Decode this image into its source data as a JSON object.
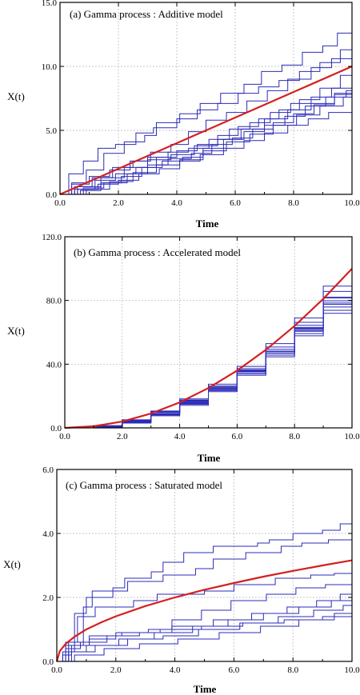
{
  "chart_data": [
    {
      "type": "line",
      "title": "(a) Gamma process : Additive model",
      "xlabel": "Time",
      "ylabel": "X(t)",
      "xlim": [
        0,
        10
      ],
      "ylim": [
        0,
        15
      ],
      "xticks": [
        "0.0",
        "2.0",
        "4.0",
        "6.0",
        "8.0",
        "10.0"
      ],
      "yticks": [
        "0.0",
        "5.0",
        "10.0",
        "15.0"
      ],
      "grid": true,
      "colors": {
        "paths": "#2b2bb8",
        "mean": "#d42020"
      },
      "mean": {
        "x": [
          0,
          10
        ],
        "y": [
          0,
          10
        ]
      },
      "paths": [
        {
          "x": [
            0,
            0.4,
            0.9,
            1.5,
            2.2,
            2.9,
            3.3,
            4.1,
            4.8,
            5.5,
            6.3,
            6.9,
            7.6,
            8.3,
            9.0,
            9.5,
            10
          ],
          "y": [
            0,
            0.9,
            1.9,
            3.2,
            4.1,
            4.6,
            5.6,
            6.3,
            7.1,
            7.9,
            8.6,
            9.6,
            10.1,
            11.1,
            11.6,
            12.6,
            12.6
          ]
        },
        {
          "x": [
            0,
            0.3,
            0.8,
            1.3,
            1.9,
            2.6,
            3.2,
            4.0,
            4.7,
            5.4,
            6.1,
            6.8,
            7.5,
            8.2,
            8.9,
            9.6,
            10
          ],
          "y": [
            0,
            1.6,
            2.6,
            3.6,
            3.9,
            4.8,
            5.2,
            5.9,
            6.6,
            7.1,
            7.9,
            8.4,
            8.9,
            9.6,
            10.3,
            11.3,
            11.6
          ]
        },
        {
          "x": [
            0,
            0.5,
            1.1,
            1.8,
            2.5,
            3.1,
            3.8,
            4.4,
            5.0,
            5.7,
            6.4,
            7.1,
            7.8,
            8.6,
            9.3,
            10
          ],
          "y": [
            0,
            0.6,
            1.3,
            2.1,
            2.6,
            3.3,
            3.9,
            4.9,
            5.8,
            6.4,
            7.3,
            8.1,
            9.0,
            9.9,
            10.6,
            11.0
          ]
        },
        {
          "x": [
            0,
            0.6,
            1.2,
            1.9,
            2.6,
            3.3,
            4.0,
            4.7,
            5.4,
            6.1,
            6.8,
            7.5,
            8.2,
            8.9,
            9.6,
            10
          ],
          "y": [
            0,
            0.4,
            1.1,
            1.6,
            2.1,
            2.9,
            3.4,
            3.9,
            4.6,
            5.3,
            5.9,
            6.6,
            7.4,
            8.3,
            9.3,
            10.3
          ]
        },
        {
          "x": [
            0,
            0.4,
            1.0,
            1.7,
            2.4,
            3.0,
            3.7,
            4.4,
            5.1,
            5.8,
            6.5,
            7.2,
            7.9,
            8.6,
            9.3,
            10
          ],
          "y": [
            0,
            0.8,
            1.4,
            1.9,
            2.6,
            2.9,
            3.3,
            3.6,
            4.3,
            5.1,
            5.6,
            6.4,
            7.1,
            7.6,
            8.3,
            8.6
          ]
        },
        {
          "x": [
            0,
            0.7,
            1.4,
            2.1,
            2.8,
            3.5,
            4.2,
            4.9,
            5.6,
            6.3,
            7.0,
            7.7,
            8.4,
            9.1,
            9.8,
            10
          ],
          "y": [
            0,
            0.3,
            0.9,
            1.4,
            2.1,
            2.6,
            2.9,
            3.6,
            4.3,
            4.9,
            5.4,
            6.1,
            6.9,
            7.6,
            8.1,
            8.3
          ]
        },
        {
          "x": [
            0,
            0.8,
            1.5,
            2.3,
            3.0,
            3.7,
            4.5,
            5.2,
            5.9,
            6.6,
            7.3,
            8.0,
            8.7,
            9.4,
            10
          ],
          "y": [
            0,
            0.5,
            0.9,
            1.6,
            2.3,
            2.8,
            3.2,
            3.9,
            4.4,
            5.1,
            5.6,
            6.3,
            7.0,
            7.8,
            8.8
          ]
        },
        {
          "x": [
            0,
            0.5,
            1.3,
            2.0,
            2.7,
            3.4,
            4.1,
            4.8,
            5.6,
            6.3,
            7.0,
            7.8,
            8.5,
            9.2,
            10
          ],
          "y": [
            0,
            0.4,
            0.8,
            1.1,
            1.6,
            2.0,
            2.6,
            3.1,
            3.6,
            4.2,
            4.8,
            5.4,
            5.9,
            6.4,
            6.7
          ]
        },
        {
          "x": [
            0,
            0.6,
            1.4,
            2.2,
            3.0,
            3.8,
            4.6,
            5.4,
            6.2,
            7.0,
            7.8,
            8.6,
            9.4,
            10
          ],
          "y": [
            0,
            0.6,
            1.3,
            2.1,
            2.7,
            3.1,
            3.8,
            4.3,
            5.1,
            5.9,
            6.6,
            7.1,
            7.9,
            8.4
          ]
        },
        {
          "x": [
            0,
            0.9,
            1.7,
            2.5,
            3.3,
            4.1,
            4.9,
            5.7,
            6.5,
            7.3,
            8.1,
            8.9,
            9.7,
            10
          ],
          "y": [
            0,
            0.4,
            1.0,
            1.7,
            2.3,
            2.7,
            3.4,
            4.1,
            4.7,
            5.4,
            6.2,
            6.9,
            7.6,
            7.9
          ]
        }
      ]
    },
    {
      "type": "line",
      "title": "(b) Gamma process : Accelerated  model",
      "xlabel": "Time",
      "ylabel": "X(t)",
      "xlim": [
        0,
        10
      ],
      "ylim": [
        0,
        120
      ],
      "xticks": [
        "0.0",
        "2.0",
        "4.0",
        "6.0",
        "8.0",
        "10.0"
      ],
      "yticks": [
        "0.0",
        "40.0",
        "80.0",
        "120.0"
      ],
      "grid": true,
      "colors": {
        "paths": "#2b2bb8",
        "mean": "#d42020"
      },
      "mean": {
        "x": [
          0,
          1,
          2,
          3,
          4,
          5,
          6,
          7,
          8,
          9,
          10
        ],
        "y": [
          0,
          1,
          4,
          9,
          16,
          25,
          36,
          49,
          64,
          81,
          100
        ]
      },
      "paths": [
        {
          "x": [
            0,
            1,
            2,
            3,
            4,
            5,
            6,
            7,
            8,
            9,
            10
          ],
          "y": [
            0,
            1.4,
            5.1,
            10.6,
            18.2,
            27.4,
            38.6,
            52.9,
            69.0,
            89.0,
            112.0
          ]
        },
        {
          "x": [
            0,
            1,
            2,
            3,
            4,
            5,
            6,
            7,
            8,
            9,
            10
          ],
          "y": [
            0,
            1.0,
            4.5,
            9.8,
            17.1,
            26.3,
            37.2,
            50.8,
            66.3,
            85.7,
            108.0
          ]
        },
        {
          "x": [
            0,
            1,
            2,
            3,
            4,
            5,
            6,
            7,
            8,
            9,
            10
          ],
          "y": [
            0,
            0.7,
            3.6,
            8.4,
            15.6,
            24.2,
            35.3,
            48.2,
            63.1,
            81.5,
            103.0
          ]
        },
        {
          "x": [
            0,
            1,
            2,
            3,
            4,
            5,
            6,
            7,
            8,
            9,
            10
          ],
          "y": [
            0,
            1.2,
            4.2,
            9.5,
            16.4,
            25.5,
            36.0,
            49.3,
            64.4,
            82.0,
            101.0
          ]
        },
        {
          "x": [
            0,
            1,
            2,
            3,
            4,
            5,
            6,
            7,
            8,
            9,
            10
          ],
          "y": [
            0,
            0.9,
            3.9,
            8.8,
            15.9,
            24.8,
            35.6,
            47.9,
            62.5,
            79.8,
            99.0
          ]
        },
        {
          "x": [
            0,
            1,
            2,
            3,
            4,
            5,
            6,
            7,
            8,
            9,
            10
          ],
          "y": [
            0,
            0.6,
            3.3,
            8.1,
            14.9,
            23.4,
            34.1,
            46.8,
            61.2,
            77.6,
            96.0
          ]
        },
        {
          "x": [
            0,
            1,
            2,
            3,
            4,
            5,
            6,
            7,
            8,
            9,
            10
          ],
          "y": [
            0,
            1.1,
            4.6,
            9.9,
            16.7,
            25.0,
            35.1,
            47.0,
            60.6,
            75.9,
            93.0
          ]
        },
        {
          "x": [
            0,
            1,
            2,
            3,
            4,
            5,
            6,
            7,
            8,
            9,
            10
          ],
          "y": [
            0,
            0.8,
            3.7,
            8.6,
            15.3,
            23.8,
            33.9,
            45.7,
            59.2,
            73.8,
            90.0
          ]
        },
        {
          "x": [
            0,
            1,
            2,
            3,
            4,
            5,
            6,
            7,
            8,
            9,
            10
          ],
          "y": [
            0,
            0.5,
            3.0,
            7.6,
            14.2,
            22.7,
            33.0,
            44.6,
            57.8,
            71.9,
            87.0
          ]
        },
        {
          "x": [
            0,
            1,
            2,
            3,
            4,
            5,
            6,
            7,
            8,
            9,
            10
          ],
          "y": [
            0,
            1.3,
            4.9,
            10.2,
            17.5,
            26.1,
            36.4,
            48.1,
            61.9,
            78.4,
            97.0
          ]
        }
      ]
    },
    {
      "type": "line",
      "title": "(c) Gamma process : Saturated model",
      "xlabel": "Time",
      "ylabel": "X(t)",
      "xlim": [
        0,
        10
      ],
      "ylim": [
        0,
        6
      ],
      "xticks": [
        "0.0",
        "2.0",
        "4.0",
        "6.0",
        "8.0",
        "10.0"
      ],
      "yticks": [
        "0.0",
        "2.0",
        "4.0",
        "6.0"
      ],
      "grid": true,
      "colors": {
        "paths": "#2b2bb8",
        "mean": "#d42020"
      },
      "mean": {
        "x": [
          0,
          0.1,
          0.3,
          0.6,
          1,
          1.5,
          2,
          3,
          4,
          5,
          6,
          7,
          8,
          9,
          10
        ],
        "y": [
          0,
          0.32,
          0.55,
          0.77,
          1.0,
          1.22,
          1.41,
          1.73,
          2.0,
          2.24,
          2.45,
          2.65,
          2.83,
          3.0,
          3.16
        ]
      },
      "paths": [
        {
          "x": [
            0,
            0.2,
            0.6,
            1.0,
            1.9,
            2.3,
            3.2,
            3.6,
            4.3,
            5.3,
            6.8,
            7.2,
            8.0,
            9.0,
            9.6,
            10
          ],
          "y": [
            0,
            0.3,
            1.5,
            2.0,
            2.3,
            2.6,
            2.8,
            3.1,
            3.4,
            3.6,
            3.7,
            3.8,
            4.0,
            4.1,
            4.3,
            4.4
          ]
        },
        {
          "x": [
            0,
            0.3,
            0.9,
            1.2,
            2.4,
            3.6,
            4.7,
            5.3,
            6.4,
            7.6,
            8.3,
            9.2,
            10
          ],
          "y": [
            0,
            0.5,
            1.7,
            2.2,
            2.5,
            2.7,
            2.9,
            3.2,
            3.4,
            3.6,
            3.7,
            3.8,
            3.9
          ]
        },
        {
          "x": [
            0,
            0.4,
            0.7,
            1.3,
            2.6,
            3.4,
            5.0,
            6.0,
            7.4,
            8.6,
            9.4,
            10
          ],
          "y": [
            0,
            0.6,
            1.4,
            1.7,
            1.9,
            2.1,
            2.2,
            2.4,
            2.6,
            2.7,
            2.75,
            2.8
          ]
        },
        {
          "x": [
            0,
            0.2,
            0.5,
            1.1,
            2.0,
            3.1,
            3.9,
            4.9,
            5.9,
            7.1,
            8.1,
            9.1,
            10
          ],
          "y": [
            0,
            0.2,
            0.5,
            0.7,
            0.9,
            1.0,
            1.3,
            1.6,
            1.9,
            2.1,
            2.3,
            2.4,
            2.5
          ]
        },
        {
          "x": [
            0,
            0.3,
            0.8,
            1.7,
            2.8,
            3.9,
            5.3,
            6.6,
            7.8,
            8.8,
            9.6,
            10
          ],
          "y": [
            0,
            0.4,
            0.6,
            0.8,
            0.9,
            1.1,
            1.3,
            1.5,
            1.7,
            1.9,
            2.1,
            2.3
          ]
        },
        {
          "x": [
            0,
            0.4,
            1.0,
            2.1,
            3.3,
            4.6,
            5.8,
            7.0,
            8.2,
            9.3,
            10
          ],
          "y": [
            0,
            0.3,
            0.5,
            0.7,
            0.9,
            1.1,
            1.3,
            1.5,
            1.7,
            1.9,
            2.0
          ]
        },
        {
          "x": [
            0,
            0.5,
            1.3,
            2.4,
            3.6,
            4.8,
            6.2,
            7.5,
            8.7,
            9.7,
            10
          ],
          "y": [
            0,
            0.3,
            0.5,
            0.7,
            0.8,
            1.0,
            1.2,
            1.4,
            1.6,
            1.75,
            1.8
          ]
        },
        {
          "x": [
            0,
            0.6,
            1.6,
            2.8,
            4.1,
            5.5,
            6.9,
            8.2,
            9.4,
            10
          ],
          "y": [
            0,
            0.2,
            0.4,
            0.55,
            0.7,
            0.9,
            1.1,
            1.3,
            1.5,
            1.6
          ]
        },
        {
          "x": [
            0,
            0.3,
            1.1,
            2.2,
            3.5,
            4.9,
            6.3,
            7.7,
            9.0,
            10
          ],
          "y": [
            0,
            0.6,
            0.8,
            0.9,
            1.0,
            1.1,
            1.2,
            1.3,
            1.4,
            1.5
          ]
        }
      ]
    }
  ]
}
